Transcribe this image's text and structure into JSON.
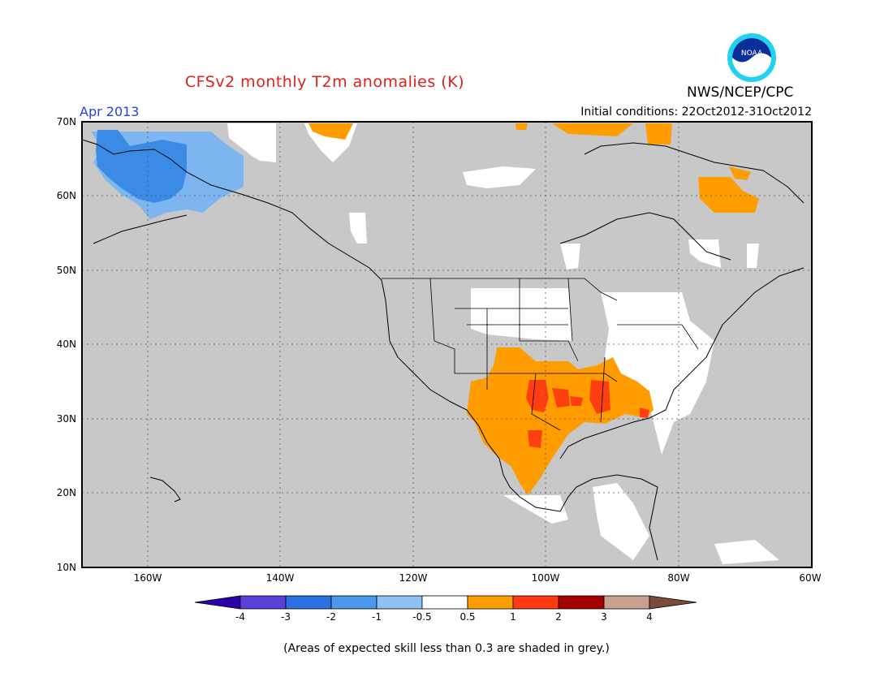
{
  "header": {
    "title": "CFSv2 monthly T2m anomalies (K)",
    "month": "Apr 2013",
    "initial_conditions": "Initial conditions: 22Oct2012-31Oct2012",
    "agency": "NWS/NCEP/CPC",
    "logo_text": "NOAA"
  },
  "map": {
    "lat_labels": [
      "70N",
      "60N",
      "50N",
      "40N",
      "30N",
      "20N",
      "10N"
    ],
    "lon_labels": [
      "160W",
      "140W",
      "120W",
      "100W",
      "80W",
      "60W"
    ],
    "colors": {
      "background_grey": "#c8c8c8",
      "white": "#ffffff",
      "light_blue": "#7cb5f0",
      "blue": "#3a8be6",
      "orange": "#ff9d00",
      "red_orange": "#ff3f10"
    }
  },
  "colorbar": {
    "labels": [
      "-4",
      "-3",
      "-2",
      "-1",
      "-0.5",
      "0.5",
      "1",
      "2",
      "3",
      "4"
    ],
    "colors": [
      "#2c00a8",
      "#5a40d8",
      "#2a70e0",
      "#4a97ec",
      "#8ec2f4",
      "#ffffff",
      "#ff9d00",
      "#ff3a10",
      "#a50000",
      "#c8a090",
      "#7a4a3a"
    ]
  },
  "footnote": "(Areas of expected skill less than 0.3 are shaded in grey.)"
}
